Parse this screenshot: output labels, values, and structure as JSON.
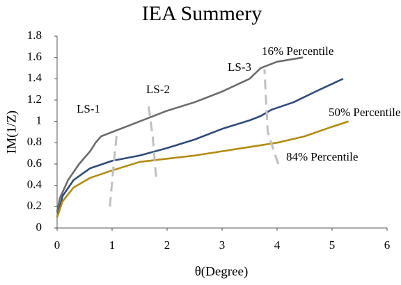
{
  "chart_data": {
    "type": "line",
    "title": "IEA Summery",
    "x_label": "θ(Degree)",
    "y_label": "IM(1/Z)",
    "xlim": [
      0,
      6
    ],
    "xticks": [
      0,
      1,
      2,
      3,
      4,
      5,
      6
    ],
    "ylim": [
      0,
      1.8
    ],
    "yticks": [
      0,
      0.2,
      0.4,
      0.6,
      0.8,
      1,
      1.2,
      1.4,
      1.6,
      1.8
    ],
    "grid": false,
    "series": [
      {
        "name": "16% Percentile",
        "color": "#6b6b6b",
        "dashed": false,
        "x": [
          0,
          0.05,
          0.2,
          0.4,
          0.6,
          0.7,
          0.8,
          1,
          1.5,
          2,
          2.5,
          3,
          3.5,
          3.7,
          4,
          4.47
        ],
        "values": [
          0.15,
          0.28,
          0.45,
          0.6,
          0.72,
          0.8,
          0.86,
          0.9,
          1.0,
          1.1,
          1.18,
          1.28,
          1.4,
          1.5,
          1.56,
          1.6
        ]
      },
      {
        "name": "50% Percentile",
        "color": "#2f4b7c",
        "dashed": false,
        "x": [
          0,
          0.1,
          0.3,
          0.6,
          1,
          1.5,
          2,
          2.5,
          3,
          3.5,
          3.7,
          3.9,
          4.3,
          4.7,
          5.2
        ],
        "values": [
          0.1,
          0.3,
          0.45,
          0.56,
          0.63,
          0.68,
          0.75,
          0.83,
          0.93,
          1.01,
          1.05,
          1.11,
          1.18,
          1.28,
          1.4
        ]
      },
      {
        "name": "84% Percentile",
        "color": "#b38b10",
        "dashed": false,
        "x": [
          0,
          0.1,
          0.3,
          0.6,
          1,
          1.5,
          2,
          2.5,
          3,
          3.5,
          4,
          4.5,
          5,
          5.3
        ],
        "values": [
          0.1,
          0.25,
          0.38,
          0.47,
          0.54,
          0.62,
          0.65,
          0.68,
          0.72,
          0.76,
          0.8,
          0.86,
          0.95,
          1.0
        ]
      },
      {
        "name": "LS-1",
        "color": "#bfbfbf",
        "dashed": true,
        "x": [
          0.96,
          1.02,
          1.09
        ],
        "values": [
          0.2,
          0.55,
          0.91
        ]
      },
      {
        "name": "LS-2",
        "color": "#bfbfbf",
        "dashed": true,
        "x": [
          1.8,
          1.74,
          1.66
        ],
        "values": [
          0.48,
          0.85,
          1.16
        ]
      },
      {
        "name": "LS-3",
        "color": "#bfbfbf",
        "dashed": true,
        "x": [
          4.02,
          3.83,
          3.77
        ],
        "values": [
          0.6,
          0.9,
          1.49
        ]
      }
    ]
  }
}
